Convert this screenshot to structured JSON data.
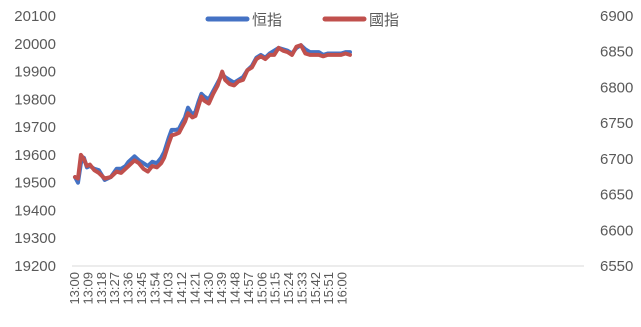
{
  "chart_data": {
    "type": "line",
    "grid": false,
    "legend_position": "top-center",
    "left_axis": {
      "ylim": [
        19200,
        20100
      ],
      "ticks": [
        19200,
        19300,
        19400,
        19500,
        19600,
        19700,
        19800,
        19900,
        20000,
        20100
      ]
    },
    "right_axis": {
      "ylim": [
        6550,
        6900
      ],
      "ticks": [
        6550,
        6600,
        6650,
        6700,
        6750,
        6800,
        6850,
        6900
      ]
    },
    "x_tick_labels": [
      "13:00",
      "13:09",
      "13:18",
      "13:27",
      "13:36",
      "13:45",
      "13:54",
      "14:03",
      "14:12",
      "14:21",
      "14:30",
      "14:39",
      "14:48",
      "14:57",
      "15:06",
      "15:15",
      "15:24",
      "15:33",
      "15:42",
      "15:51",
      "16:00"
    ],
    "series": [
      {
        "name": "恒指",
        "axis": "left",
        "color": "#4472C4",
        "x": [
          "13:00",
          "13:02",
          "13:04",
          "13:06",
          "13:08",
          "13:10",
          "13:13",
          "13:16",
          "13:20",
          "13:24",
          "13:28",
          "13:31",
          "13:34",
          "13:36",
          "13:40",
          "13:43",
          "13:46",
          "13:49",
          "13:52",
          "13:55",
          "13:58",
          "14:00",
          "14:03",
          "14:05",
          "14:08",
          "14:10",
          "14:12",
          "14:14",
          "14:16",
          "14:19",
          "14:21",
          "14:23",
          "14:25",
          "14:27",
          "14:30",
          "14:33",
          "14:36",
          "14:39",
          "14:41",
          "14:44",
          "14:47",
          "14:50",
          "14:53",
          "14:56",
          "14:59",
          "15:02",
          "15:05",
          "15:08",
          "15:11",
          "15:14",
          "15:17",
          "15:20",
          "15:23",
          "15:26",
          "15:29",
          "15:32",
          "15:35",
          "15:38",
          "15:41",
          "15:44",
          "15:47",
          "15:50",
          "15:53",
          "15:56",
          "15:59",
          "16:02",
          "16:05"
        ],
        "values": [
          19520,
          19500,
          19570,
          19590,
          19555,
          19560,
          19550,
          19545,
          19510,
          19520,
          19550,
          19550,
          19560,
          19575,
          19595,
          19580,
          19570,
          19560,
          19575,
          19570,
          19590,
          19610,
          19660,
          19690,
          19690,
          19695,
          19715,
          19735,
          19770,
          19745,
          19755,
          19790,
          19820,
          19810,
          19800,
          19830,
          19860,
          19890,
          19880,
          19870,
          19860,
          19870,
          19880,
          19905,
          19920,
          19950,
          19960,
          19950,
          19965,
          19975,
          19985,
          19980,
          19975,
          19965,
          19985,
          19995,
          19980,
          19970,
          19970,
          19970,
          19960,
          19965,
          19965,
          19965,
          19965,
          19970,
          19970
        ]
      },
      {
        "name": "國指",
        "axis": "left",
        "color": "#C0504D",
        "x": [
          "13:00",
          "13:02",
          "13:04",
          "13:06",
          "13:08",
          "13:10",
          "13:13",
          "13:16",
          "13:20",
          "13:24",
          "13:28",
          "13:31",
          "13:34",
          "13:36",
          "13:40",
          "13:43",
          "13:46",
          "13:49",
          "13:52",
          "13:55",
          "13:58",
          "14:00",
          "14:03",
          "14:05",
          "14:08",
          "14:10",
          "14:12",
          "14:14",
          "14:16",
          "14:19",
          "14:21",
          "14:23",
          "14:25",
          "14:27",
          "14:30",
          "14:33",
          "14:36",
          "14:39",
          "14:41",
          "14:44",
          "14:47",
          "14:50",
          "14:53",
          "14:56",
          "14:59",
          "15:02",
          "15:05",
          "15:08",
          "15:11",
          "15:14",
          "15:17",
          "15:20",
          "15:23",
          "15:26",
          "15:29",
          "15:32",
          "15:35",
          "15:38",
          "15:41",
          "15:44",
          "15:47",
          "15:50",
          "15:53",
          "15:56",
          "15:59",
          "16:02",
          "16:05"
        ],
        "values": [
          19520,
          19515,
          19600,
          19585,
          19560,
          19565,
          19545,
          19535,
          19515,
          19520,
          19540,
          19535,
          19550,
          19560,
          19580,
          19570,
          19550,
          19540,
          19560,
          19555,
          19570,
          19590,
          19640,
          19670,
          19675,
          19680,
          19700,
          19720,
          19750,
          19735,
          19740,
          19775,
          19810,
          19795,
          19785,
          19820,
          19850,
          19900,
          19870,
          19855,
          19850,
          19865,
          19870,
          19905,
          19915,
          19945,
          19955,
          19945,
          19960,
          19960,
          19985,
          19975,
          19970,
          19960,
          19990,
          19995,
          19965,
          19960,
          19960,
          19960,
          19955,
          19960,
          19960,
          19960,
          19960,
          19965,
          19960
        ]
      }
    ]
  }
}
